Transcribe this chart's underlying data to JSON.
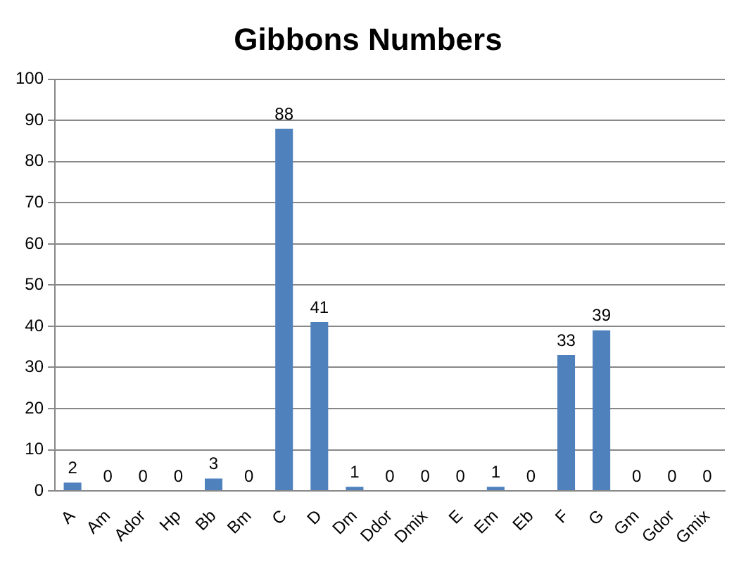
{
  "chart_data": {
    "type": "bar",
    "title": "Gibbons Numbers",
    "categories": [
      "A",
      "Am",
      "Ador",
      "Hp",
      "Bb",
      "Bm",
      "C",
      "D",
      "Dm",
      "Ddor",
      "Dmix",
      "E",
      "Em",
      "Eb",
      "F",
      "G",
      "Gm",
      "Gdor",
      "Gmix"
    ],
    "values": [
      2,
      0,
      0,
      0,
      3,
      0,
      88,
      41,
      1,
      0,
      0,
      0,
      1,
      0,
      33,
      39,
      0,
      0,
      0
    ],
    "color": "#4f81bd",
    "ylim": [
      0,
      100
    ],
    "yticks": [
      0,
      10,
      20,
      30,
      40,
      50,
      60,
      70,
      80,
      90,
      100
    ],
    "grid": "y",
    "data_labels": true,
    "legend": false
  }
}
